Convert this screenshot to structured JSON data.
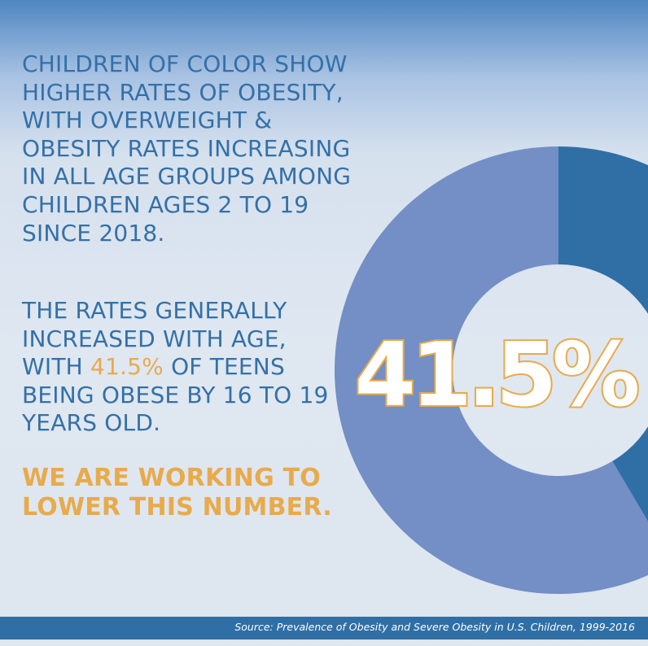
{
  "paragraph1": "Children of color show higher rates of obesity, with overweight & obesity rates increasing in all age groups among children ages 2 to 19 since 2018.",
  "paragraph2": {
    "before": "The rates generally increased with age, with ",
    "highlight": "41.5%",
    "after": " of teens being obese by 16 to 19 years old."
  },
  "call_to_action": "We are working to lower this number.",
  "source": "Source: Prevalence of Obesity and Severe Obesity in U.S. Children, 1999-2016",
  "colors": {
    "primary_blue": "#3470a8",
    "teen_slice": "#2f6fa6",
    "other_slice": "#738fc5",
    "accent_orange": "#e8aa4b"
  },
  "chart_data": {
    "type": "pie",
    "variant": "donut",
    "center_label": "41.5%",
    "slices": [
      {
        "value": 41.5,
        "color": "#2f6fa6"
      },
      {
        "value": 58.5,
        "color": "#738fc5"
      }
    ]
  }
}
